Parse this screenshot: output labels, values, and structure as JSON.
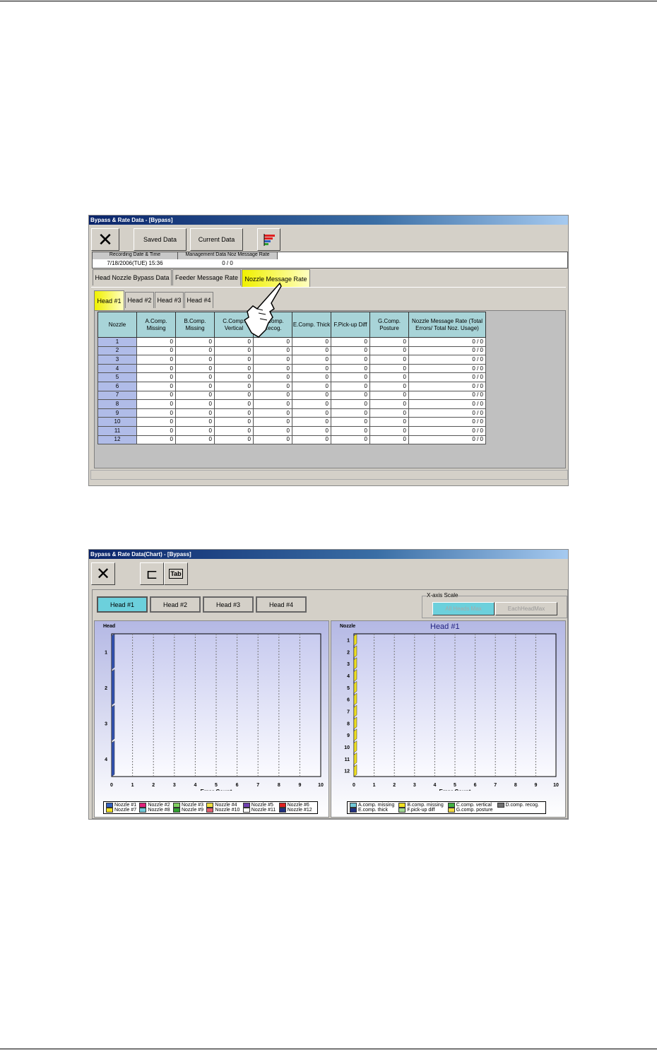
{
  "win1": {
    "title": "Bypass & Rate Data - [Bypass]",
    "saved_label": "Saved Data",
    "current_label": "Current Data",
    "info_headers": [
      "Recording Date & Time",
      "Management Data Noz Message Rate"
    ],
    "info_values": [
      "7/18/2006(TUE) 15:36",
      "0 / 0"
    ],
    "tabs": [
      "Head Nozzle Bypass Data",
      "Feeder Message Rate",
      "Nozzle Message Rate"
    ],
    "selected_tab": "Nozzle Message Rate",
    "head_tabs": [
      "Head #1",
      "Head #2",
      "Head #3",
      "Head #4"
    ],
    "selected_head": "Head #1",
    "columns": [
      "Nozzle",
      "A.Comp. Missing",
      "B.Comp. Missing",
      "C.Comp. Vertical",
      "D.Comp. Recog.",
      "E.Comp. Thick",
      "F.Pick-up Diff",
      "G.Comp. Posture",
      "Nozzle Message Rate (Total Errors/ Total Noz. Usage)"
    ],
    "rows": [
      [
        "1",
        "0",
        "0",
        "0",
        "0",
        "0",
        "0",
        "0",
        "0 / 0"
      ],
      [
        "2",
        "0",
        "0",
        "0",
        "0",
        "0",
        "0",
        "0",
        "0 / 0"
      ],
      [
        "3",
        "0",
        "0",
        "0",
        "0",
        "0",
        "0",
        "0",
        "0 / 0"
      ],
      [
        "4",
        "0",
        "0",
        "0",
        "0",
        "0",
        "0",
        "0",
        "0 / 0"
      ],
      [
        "5",
        "0",
        "0",
        "0",
        "0",
        "0",
        "0",
        "0",
        "0 / 0"
      ],
      [
        "6",
        "0",
        "0",
        "0",
        "0",
        "0",
        "0",
        "0",
        "0 / 0"
      ],
      [
        "7",
        "0",
        "0",
        "0",
        "0",
        "0",
        "0",
        "0",
        "0 / 0"
      ],
      [
        "8",
        "0",
        "0",
        "0",
        "0",
        "0",
        "0",
        "0",
        "0 / 0"
      ],
      [
        "9",
        "0",
        "0",
        "0",
        "0",
        "0",
        "0",
        "0",
        "0 / 0"
      ],
      [
        "10",
        "0",
        "0",
        "0",
        "0",
        "0",
        "0",
        "0",
        "0 / 0"
      ],
      [
        "11",
        "0",
        "0",
        "0",
        "0",
        "0",
        "0",
        "0",
        "0 / 0"
      ],
      [
        "12",
        "0",
        "0",
        "0",
        "0",
        "0",
        "0",
        "0",
        "0 / 0"
      ]
    ]
  },
  "win2": {
    "title": "Bypass & Rate Data(Chart) - [Bypass]",
    "head_buttons": [
      "Head #1",
      "Head #2",
      "Head #3",
      "Head #4"
    ],
    "selected_head": "Head #1",
    "xscale_label": "X-axis Scale",
    "xscale_options": [
      "All Heads Max",
      "EachHeadMax"
    ],
    "xscale_selected": "All Heads Max"
  },
  "chart_data": [
    {
      "type": "bar",
      "orientation": "horizontal",
      "ylabel": "Head",
      "xlabel": "Error Count",
      "categories": [
        "1",
        "2",
        "3",
        "4"
      ],
      "xlim": [
        0,
        10
      ],
      "xticks": [
        "0",
        "1",
        "2",
        "3",
        "4",
        "5",
        "6",
        "7",
        "8",
        "9",
        "10"
      ],
      "grid": true,
      "series": [
        {
          "name": "Nozzle #1",
          "color": "#3060c0",
          "values": [
            0,
            0,
            0,
            0
          ]
        },
        {
          "name": "Nozzle #2",
          "color": "#e0207a",
          "values": [
            0,
            0,
            0,
            0
          ]
        },
        {
          "name": "Nozzle #3",
          "color": "#80d060",
          "values": [
            0,
            0,
            0,
            0
          ]
        },
        {
          "name": "Nozzle #4",
          "color": "#f0e040",
          "values": [
            0,
            0,
            0,
            0
          ]
        },
        {
          "name": "Nozzle #5",
          "color": "#7040b0",
          "values": [
            0,
            0,
            0,
            0
          ]
        },
        {
          "name": "Nozzle #6",
          "color": "#e02020",
          "values": [
            0,
            0,
            0,
            0
          ]
        },
        {
          "name": "Nozzle #7",
          "color": "#f0e020",
          "values": [
            0,
            0,
            0,
            0
          ]
        },
        {
          "name": "Nozzle #8",
          "color": "#70c8d8",
          "values": [
            0,
            0,
            0,
            0
          ]
        },
        {
          "name": "Nozzle #9",
          "color": "#30a030",
          "values": [
            0,
            0,
            0,
            0
          ]
        },
        {
          "name": "Nozzle #10",
          "color": "#e06070",
          "values": [
            0,
            0,
            0,
            0
          ]
        },
        {
          "name": "Nozzle #11",
          "color": "#ffffff",
          "values": [
            0,
            0,
            0,
            0
          ]
        },
        {
          "name": "Nozzle #12",
          "color": "#203080",
          "values": [
            0,
            0,
            0,
            0
          ]
        }
      ],
      "legend": "bottom"
    },
    {
      "type": "bar",
      "orientation": "horizontal",
      "title": "Head #1",
      "ylabel": "Nozzle",
      "xlabel": "Error Count",
      "categories": [
        "1",
        "2",
        "3",
        "4",
        "5",
        "6",
        "7",
        "8",
        "9",
        "10",
        "11",
        "12"
      ],
      "xlim": [
        0,
        10
      ],
      "xticks": [
        "0",
        "1",
        "2",
        "3",
        "4",
        "5",
        "6",
        "7",
        "8",
        "9",
        "10"
      ],
      "grid": true,
      "series": [
        {
          "name": "A.comp. missing",
          "color": "#70c8d8",
          "values": [
            0,
            0,
            0,
            0,
            0,
            0,
            0,
            0,
            0,
            0,
            0,
            0
          ]
        },
        {
          "name": "B.comp. missing",
          "color": "#f0e020",
          "values": [
            0,
            0,
            0,
            0,
            0,
            0,
            0,
            0,
            0,
            0,
            0,
            0
          ]
        },
        {
          "name": "C.comp. vertical",
          "color": "#40b040",
          "values": [
            0,
            0,
            0,
            0,
            0,
            0,
            0,
            0,
            0,
            0,
            0,
            0
          ]
        },
        {
          "name": "D.comp. recog.",
          "color": "#707070",
          "values": [
            0,
            0,
            0,
            0,
            0,
            0,
            0,
            0,
            0,
            0,
            0,
            0
          ]
        },
        {
          "name": "E.comp. thick",
          "color": "#203080",
          "values": [
            0,
            0,
            0,
            0,
            0,
            0,
            0,
            0,
            0,
            0,
            0,
            0
          ]
        },
        {
          "name": "F.pick-up diff",
          "color": "#a0d890",
          "values": [
            0,
            0,
            0,
            0,
            0,
            0,
            0,
            0,
            0,
            0,
            0,
            0
          ]
        },
        {
          "name": "G.comp. posture",
          "color": "#f0d840",
          "values": [
            0,
            0,
            0,
            0,
            0,
            0,
            0,
            0,
            0,
            0,
            0,
            0
          ]
        }
      ],
      "legend": "bottom"
    }
  ]
}
